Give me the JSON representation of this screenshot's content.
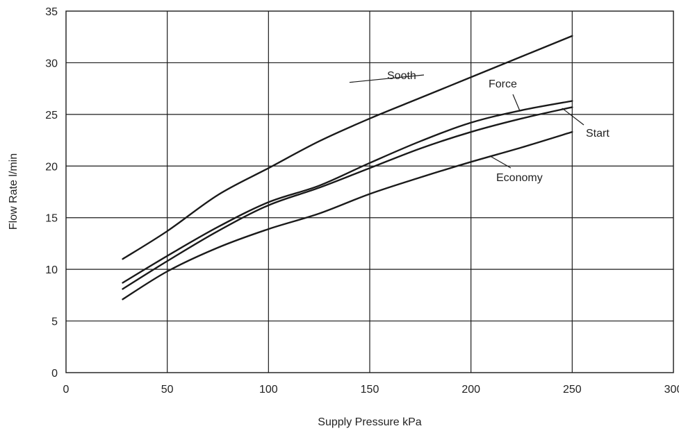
{
  "chart_data": {
    "type": "line",
    "title": "",
    "xlabel": "Supply Pressure  kPa",
    "ylabel": "Flow Rate l/min",
    "xlim": [
      0,
      300
    ],
    "ylim": [
      0,
      35
    ],
    "xticks": [
      0,
      50,
      100,
      150,
      200,
      250,
      300
    ],
    "yticks": [
      0,
      5,
      10,
      15,
      20,
      25,
      30,
      35
    ],
    "grid": true,
    "legend": "inline labels",
    "series": [
      {
        "name": "Sooth",
        "x": [
          28,
          50,
          75,
          100,
          125,
          150,
          175,
          200,
          225,
          250
        ],
        "y": [
          11.0,
          13.7,
          17.2,
          19.8,
          22.4,
          24.6,
          26.6,
          28.6,
          30.6,
          32.6
        ]
      },
      {
        "name": "Force",
        "x": [
          28,
          50,
          75,
          100,
          125,
          150,
          175,
          200,
          225,
          250
        ],
        "y": [
          8.7,
          11.3,
          14.1,
          16.5,
          18.1,
          20.3,
          22.4,
          24.2,
          25.4,
          26.3
        ]
      },
      {
        "name": "Start",
        "x": [
          28,
          50,
          75,
          100,
          125,
          150,
          175,
          200,
          225,
          250
        ],
        "y": [
          8.1,
          10.8,
          13.7,
          16.2,
          17.9,
          19.8,
          21.7,
          23.3,
          24.6,
          25.7
        ]
      },
      {
        "name": "Economy",
        "x": [
          28,
          50,
          75,
          100,
          125,
          150,
          175,
          200,
          225,
          250
        ],
        "y": [
          7.1,
          9.8,
          12.1,
          13.9,
          15.4,
          17.3,
          18.9,
          20.4,
          21.8,
          23.3
        ]
      }
    ]
  }
}
